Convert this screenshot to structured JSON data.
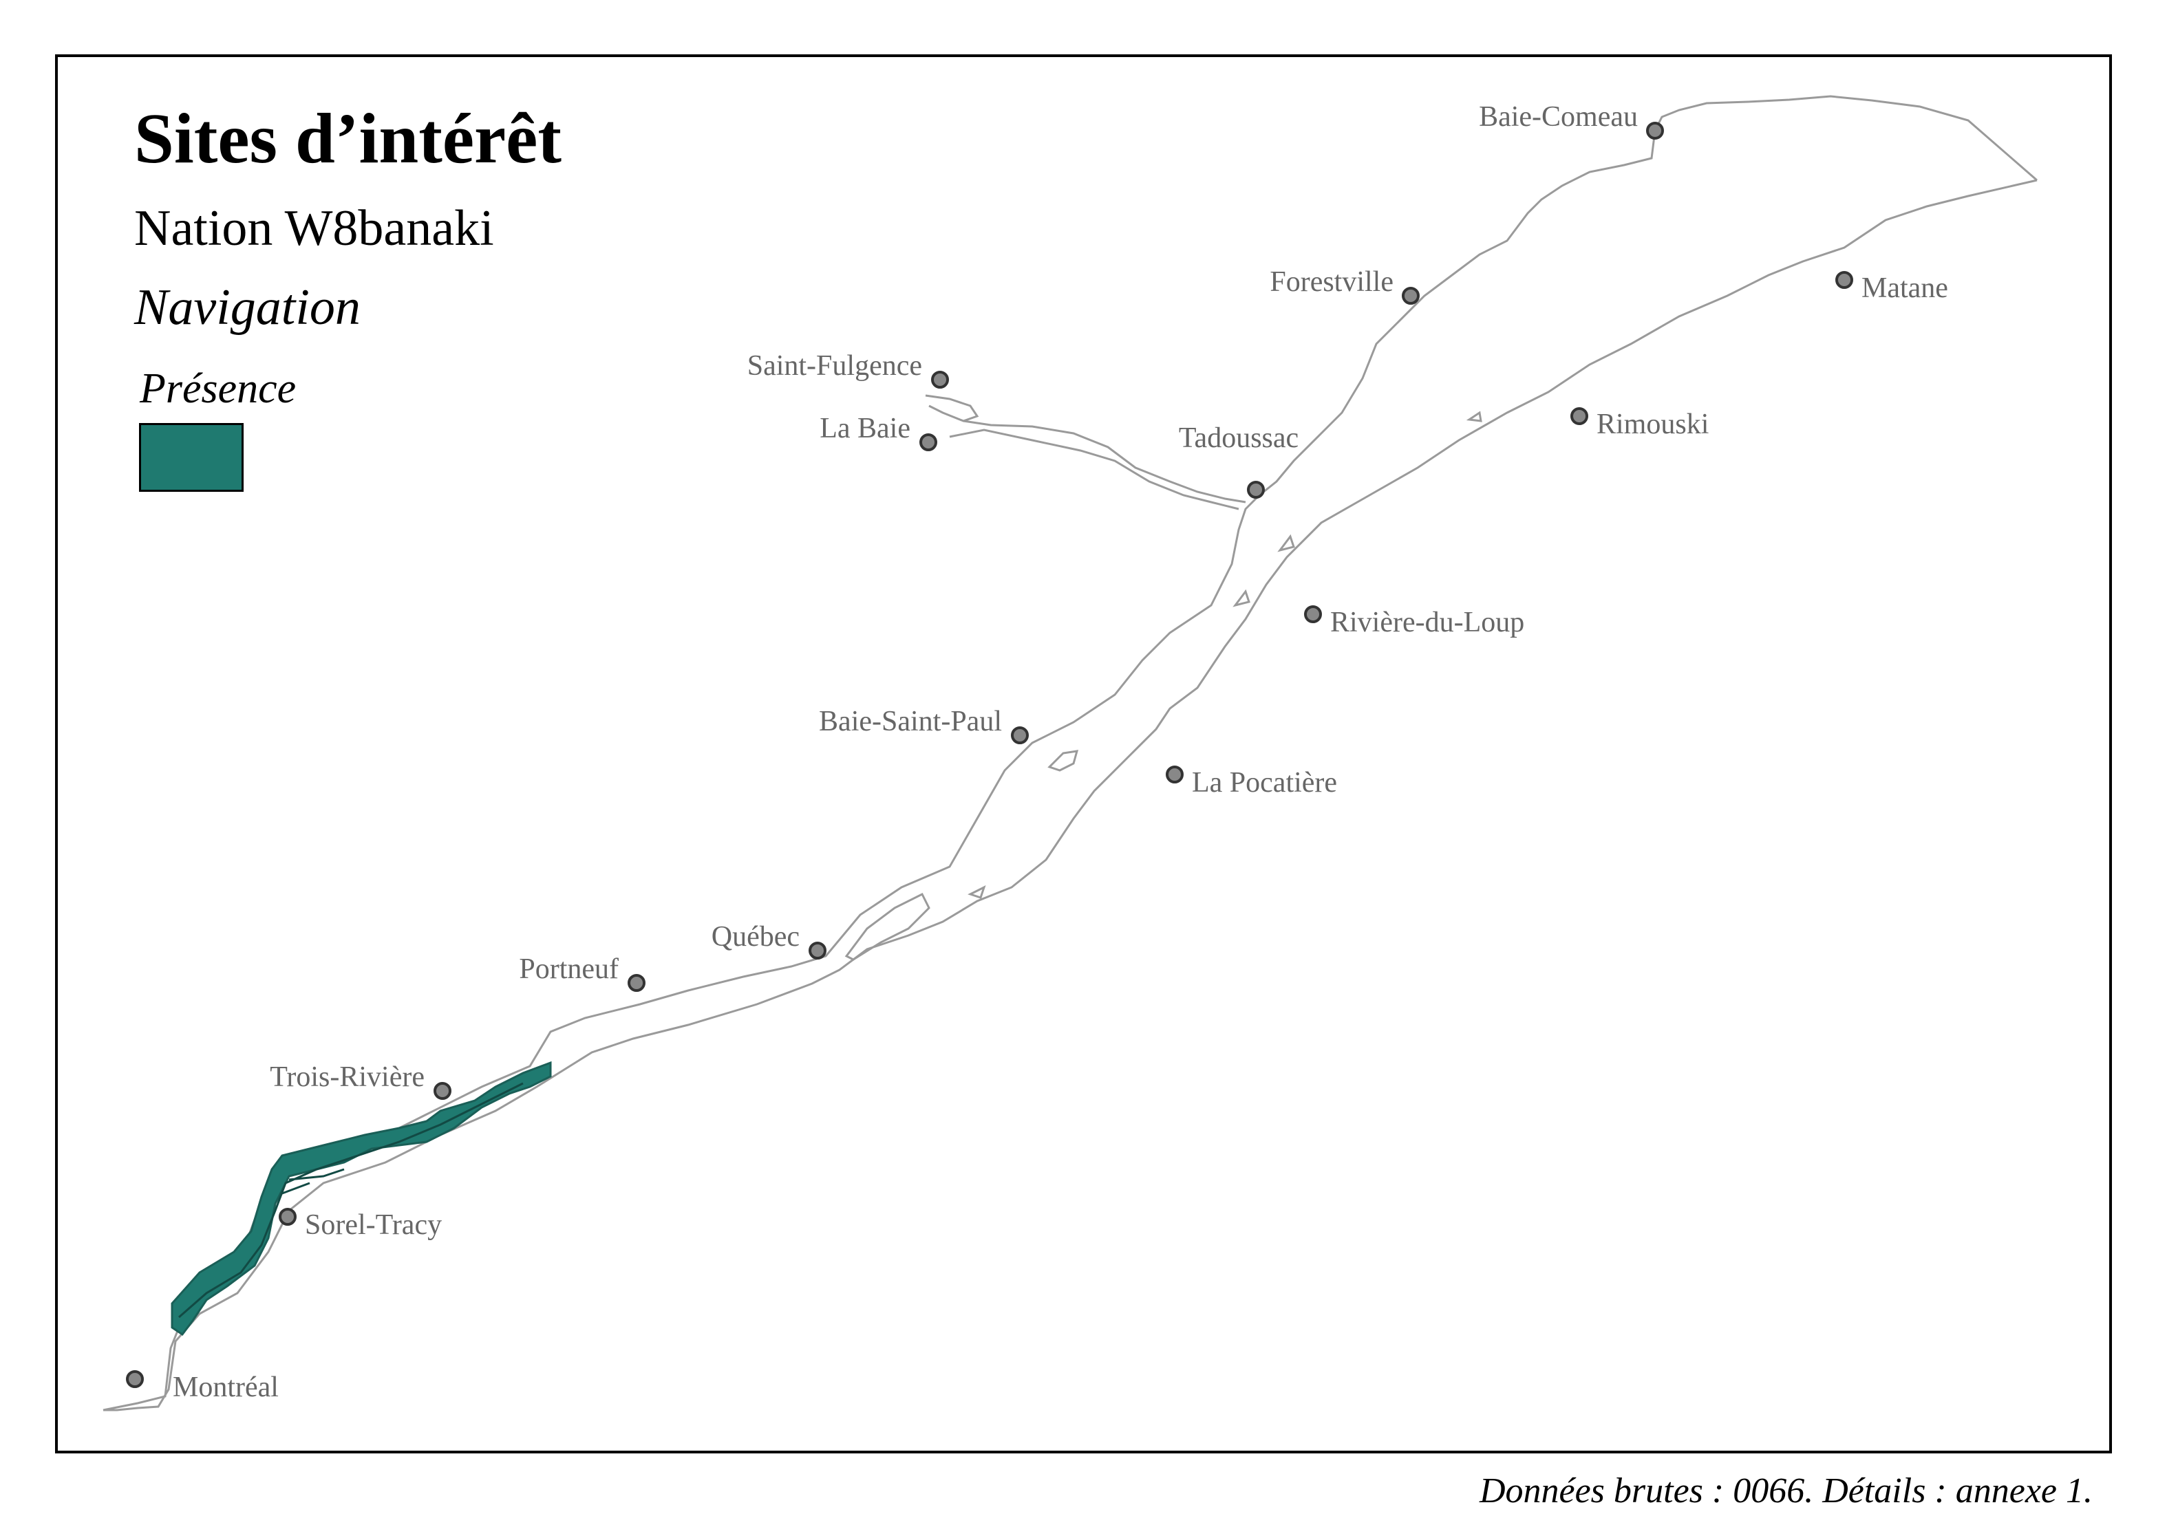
{
  "title": "Sites d’intérêt",
  "subtitle": "Nation W8banaki",
  "theme": "Navigation",
  "legend": {
    "title": "Présence",
    "swatch_color": "#1f7a70"
  },
  "credit": "Données brutes : 0066. Détails : annexe 1.",
  "colors": {
    "river_outline": "#9a9a9a",
    "city_fill": "#888888",
    "city_stroke": "#333333",
    "label": "#666666"
  },
  "cities": [
    {
      "name": "Baie-Comeau"
    },
    {
      "name": "Forestville"
    },
    {
      "name": "Matane"
    },
    {
      "name": "Saint-Fulgence"
    },
    {
      "name": "La Baie"
    },
    {
      "name": "Tadoussac"
    },
    {
      "name": "Rimouski"
    },
    {
      "name": "Rivière-du-Loup"
    },
    {
      "name": "Baie-Saint-Paul"
    },
    {
      "name": "La Pocatière"
    },
    {
      "name": "Québec"
    },
    {
      "name": "Portneuf"
    },
    {
      "name": "Trois-Rivière"
    },
    {
      "name": "Sorel-Tracy"
    },
    {
      "name": "Montréal"
    }
  ]
}
